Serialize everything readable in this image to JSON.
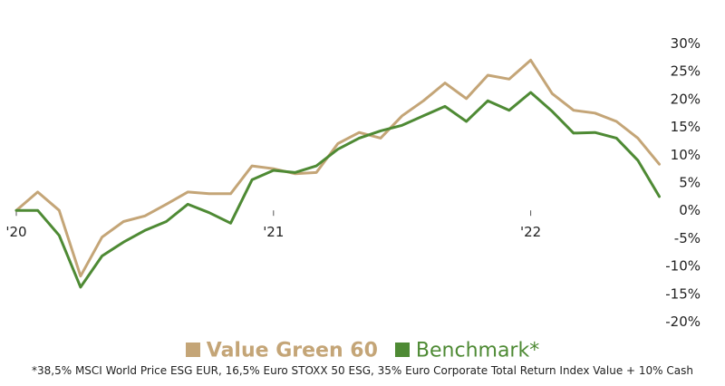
{
  "chart_data": {
    "type": "line",
    "x_labels": [
      "'20",
      "'21",
      "'22"
    ],
    "x_label_positions": [
      0,
      12,
      24
    ],
    "ylim": [
      -20,
      30
    ],
    "yticks": [
      "30%",
      "25%",
      "20%",
      "15%",
      "10%",
      "5%",
      "0%",
      "-5%",
      "-10%",
      "-15%",
      "-20%"
    ],
    "ytick_values": [
      30,
      25,
      20,
      15,
      10,
      5,
      0,
      -5,
      -10,
      -15,
      -20
    ],
    "grid": false,
    "legend_position": "bottom",
    "series": [
      {
        "name": "Value Green 60",
        "color": "#c4a577",
        "values": [
          0,
          3.3,
          0,
          -11.8,
          -4.8,
          -2,
          -1,
          1.1,
          3.3,
          3,
          3,
          8,
          7.5,
          6.6,
          6.8,
          12,
          14,
          13,
          17,
          19.7,
          22.9,
          20.1,
          24.3,
          23.6,
          27,
          21,
          18,
          17.5,
          16,
          13,
          8.3
        ]
      },
      {
        "name": "Benchmark*",
        "color": "#4e8a34",
        "values": [
          0,
          0,
          -4.5,
          -13.8,
          -8.2,
          -5.7,
          -3.6,
          -2,
          1.1,
          -0.4,
          -2.3,
          5.5,
          7.2,
          6.8,
          8,
          11,
          13,
          14.3,
          15.3,
          17,
          18.7,
          16,
          19.7,
          18,
          21.2,
          17.8,
          13.9,
          14,
          13,
          9,
          2.5
        ]
      }
    ]
  },
  "legend": {
    "series_a_label": "Value Green 60",
    "series_b_label": "Benchmark*"
  },
  "footnote": "*38,5% MSCI World Price ESG EUR, 16,5% Euro STOXX 50 ESG, 35% Euro Corporate Total Return Index Value + 10% Cash"
}
